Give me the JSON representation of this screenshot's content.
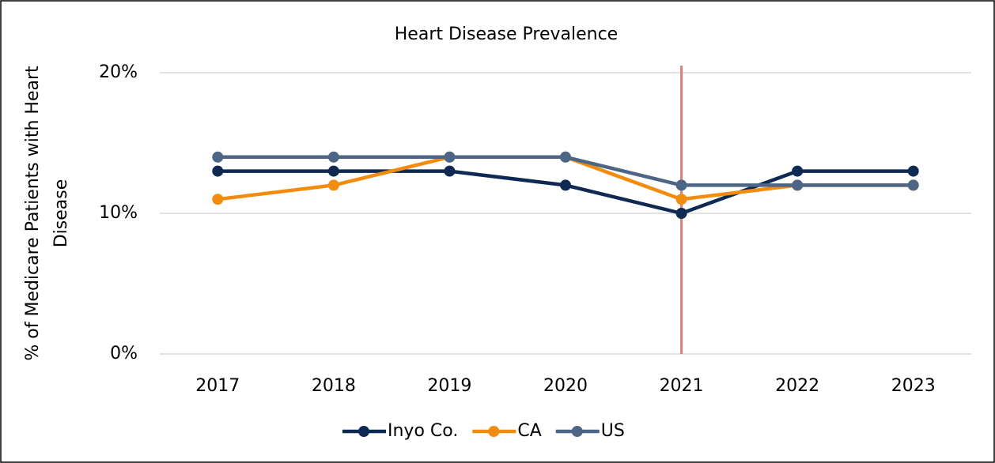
{
  "chart_data": {
    "type": "line",
    "title": "Heart Disease Prevalence",
    "y_label": "% of Medicare Patients with Heart Disease",
    "categories": [
      "2017",
      "2018",
      "2019",
      "2020",
      "2021",
      "2022",
      "2023"
    ],
    "series": [
      {
        "name": "Inyo Co.",
        "color": "#0e2a52",
        "values": [
          13,
          13,
          13,
          12,
          10,
          13,
          13
        ]
      },
      {
        "name": "CA",
        "color": "#f28c0f",
        "values": [
          11,
          12,
          14,
          14,
          11,
          12,
          12
        ]
      },
      {
        "name": "US",
        "color": "#4d6685",
        "values": [
          14,
          14,
          14,
          14,
          12,
          12,
          12
        ]
      }
    ],
    "ylim": [
      0,
      20
    ],
    "yticks": [
      {
        "value": 0,
        "label": "0%"
      },
      {
        "value": 10,
        "label": "10%"
      },
      {
        "value": 20,
        "label": "20%"
      }
    ],
    "grid": true,
    "legend": "bottom",
    "vline_index": 4,
    "vline_color": "#d9817f"
  }
}
